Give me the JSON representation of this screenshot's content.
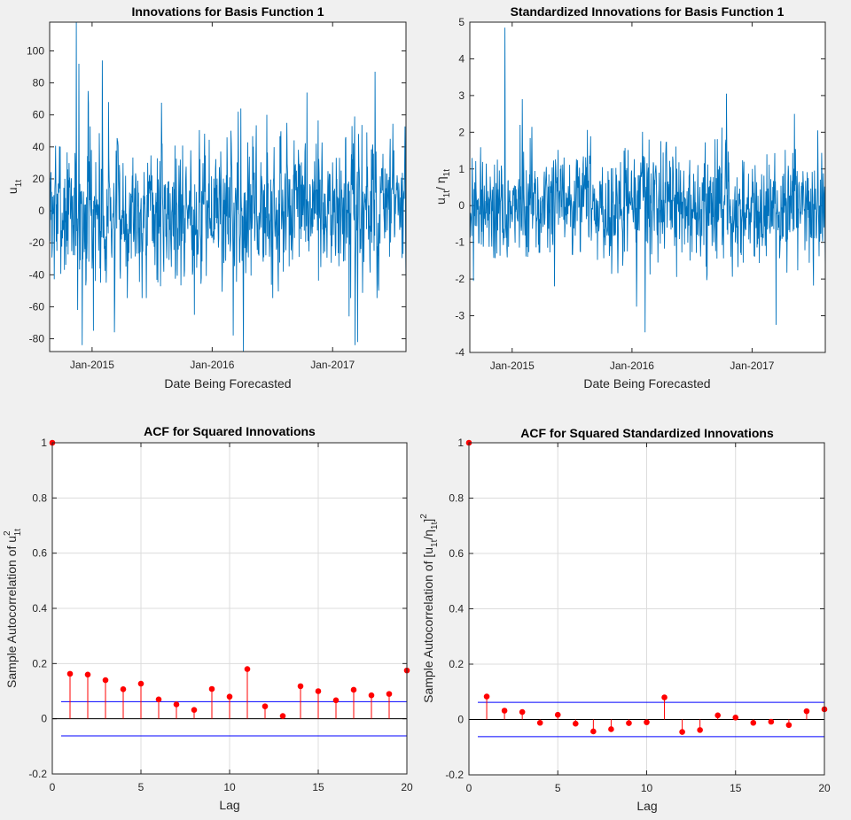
{
  "chart_data": [
    {
      "type": "line",
      "title": "Innovations for Basis Function 1",
      "xlabel": "Date Being Forecasted",
      "ylabel_main": "u",
      "ylabel_sub": "1t",
      "xticks": [
        "Jan-2015",
        "Jan-2016",
        "Jan-2017"
      ],
      "yticks": [
        "100",
        "80",
        "60",
        "40",
        "20",
        "0",
        "-20",
        "-40",
        "-60",
        "-80"
      ],
      "ylim": [
        -88,
        118
      ],
      "series_color": "#0072BD",
      "seed": 7,
      "noise_scale": 22,
      "peaks": [
        {
          "x": "2014-11-14",
          "y": 118
        },
        {
          "x": "2014-11-22",
          "y": 92
        },
        {
          "x": "2014-12-20",
          "y": 75
        },
        {
          "x": "2015-02-01",
          "y": 94
        },
        {
          "x": "2015-02-20",
          "y": 68
        },
        {
          "x": "2016-03-20",
          "y": 62
        },
        {
          "x": "2016-03-28",
          "y": 64
        },
        {
          "x": "2016-08-15",
          "y": 55
        },
        {
          "x": "2016-10-15",
          "y": 74
        },
        {
          "x": "2017-03-01",
          "y": 53
        },
        {
          "x": "2017-05-10",
          "y": 87
        },
        {
          "x": "2017-06-25",
          "y": 45
        },
        {
          "x": "2014-12-02",
          "y": -84
        },
        {
          "x": "2014-11-18",
          "y": -62
        },
        {
          "x": "2015-01-05",
          "y": -75
        },
        {
          "x": "2015-03-10",
          "y": -76
        },
        {
          "x": "2016-03-05",
          "y": -78
        },
        {
          "x": "2016-04-05",
          "y": -88
        },
        {
          "x": "2015-11-08",
          "y": -65
        },
        {
          "x": "2017-02-20",
          "y": -66
        },
        {
          "x": "2017-03-10",
          "y": -84
        },
        {
          "x": "2017-03-18",
          "y": -82
        }
      ]
    },
    {
      "type": "line",
      "title": "Standardized Innovations for Basis Function 1",
      "xlabel": "Date Being Forecasted",
      "ylabel_parts": [
        "u",
        "1t",
        "/ η",
        "1t"
      ],
      "xticks": [
        "Jan-2015",
        "Jan-2016",
        "Jan-2017"
      ],
      "yticks": [
        "5",
        "4",
        "3",
        "2",
        "1",
        "0",
        "-1",
        "-2",
        "-3",
        "-4"
      ],
      "ylim": [
        -4,
        5
      ],
      "series_color": "#0072BD",
      "seed": 19,
      "noise_scale": 0.75,
      "peaks": [
        {
          "x": "2014-12-10",
          "y": 4.85
        },
        {
          "x": "2015-02-01",
          "y": 2.9
        },
        {
          "x": "2015-01-25",
          "y": 2.2
        },
        {
          "x": "2016-02-22",
          "y": 1.8
        },
        {
          "x": "2016-10-15",
          "y": 3.05
        },
        {
          "x": "2017-05-10",
          "y": 2.5
        },
        {
          "x": "2017-07-20",
          "y": 2.05
        },
        {
          "x": "2014-09-05",
          "y": -2.05
        },
        {
          "x": "2016-01-15",
          "y": -2.75
        },
        {
          "x": "2016-02-10",
          "y": -3.45
        },
        {
          "x": "2017-03-15",
          "y": -3.25
        },
        {
          "x": "2015-05-10",
          "y": -2.2
        }
      ]
    },
    {
      "type": "stem",
      "title": "ACF for Squared Innovations",
      "xlabel": "Lag",
      "ylabel_main": "Sample Autocorrelation of u",
      "ylabel_sup": "2",
      "ylabel_sub": "1t",
      "xlim": [
        0,
        20
      ],
      "ylim": [
        -0.2,
        1
      ],
      "xticks": [
        "0",
        "5",
        "10",
        "15",
        "20"
      ],
      "yticks": [
        "1",
        "0.8",
        "0.6",
        "0.4",
        "0.2",
        "0",
        "-0.2"
      ],
      "lags": [
        0,
        1,
        2,
        3,
        4,
        5,
        6,
        7,
        8,
        9,
        10,
        11,
        12,
        13,
        14,
        15,
        16,
        17,
        18,
        19,
        20
      ],
      "values": [
        1.0,
        0.163,
        0.16,
        0.14,
        0.107,
        0.127,
        0.07,
        0.052,
        0.032,
        0.108,
        0.08,
        0.18,
        0.045,
        0.01,
        0.118,
        0.1,
        0.067,
        0.105,
        0.085,
        0.09,
        0.175
      ],
      "bound": 0.062
    },
    {
      "type": "stem",
      "title": "ACF for Squared Standardized Innovations",
      "xlabel": "Lag",
      "ylabel_parts": [
        "Sample Autocorrelation of  [u",
        "1t",
        "/η",
        "1t",
        "]",
        "2"
      ],
      "xlim": [
        0,
        20
      ],
      "ylim": [
        -0.2,
        1
      ],
      "xticks": [
        "0",
        "5",
        "10",
        "15",
        "20"
      ],
      "yticks": [
        "1",
        "0.8",
        "0.6",
        "0.4",
        "0.2",
        "0",
        "-0.2"
      ],
      "lags": [
        0,
        1,
        2,
        3,
        4,
        5,
        6,
        7,
        8,
        9,
        10,
        11,
        12,
        13,
        14,
        15,
        16,
        17,
        18,
        19,
        20
      ],
      "values": [
        1.0,
        0.083,
        0.032,
        0.027,
        -0.012,
        0.017,
        -0.015,
        -0.043,
        -0.035,
        -0.013,
        -0.01,
        0.08,
        -0.045,
        -0.038,
        0.015,
        0.007,
        -0.012,
        -0.008,
        -0.02,
        0.03,
        0.037
      ],
      "bound": 0.062
    }
  ],
  "colors": {
    "stem": "#ff0000",
    "bound": "#0000ff",
    "series": "#0072BD",
    "figure_bg": "#f0f0f0",
    "axes_bg": "#ffffff",
    "grid": "#dcdcdc"
  }
}
